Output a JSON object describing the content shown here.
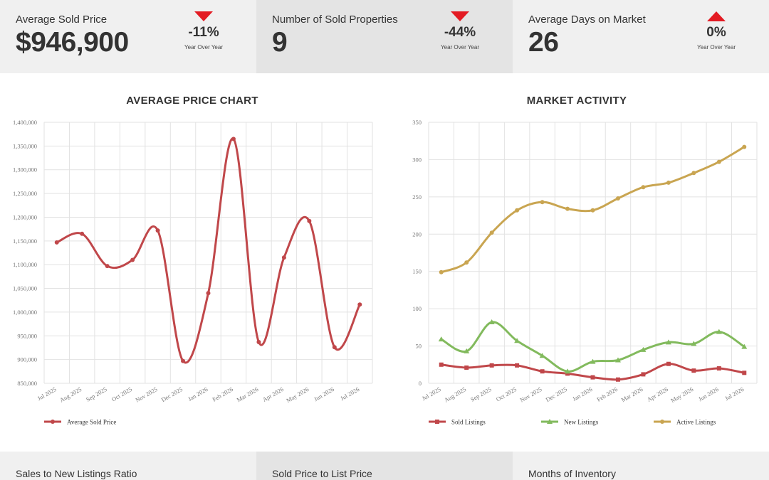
{
  "kpis": [
    {
      "label": "Average Sold Price",
      "value": "$946,900",
      "change": "-11%",
      "direction": "down",
      "sub": "Year Over Year"
    },
    {
      "label": "Number of Sold Properties",
      "value": "9",
      "change": "-44%",
      "direction": "down",
      "sub": "Year Over Year"
    },
    {
      "label": "Average Days on Market",
      "value": "26",
      "change": "0%",
      "direction": "up",
      "sub": "Year Over Year"
    }
  ],
  "colors": {
    "red": "#c0474a",
    "green": "#82ba5d",
    "gold": "#c9a551",
    "arrow": "#e31b23"
  },
  "chart_data": [
    {
      "type": "line",
      "title": "AVERAGE PRICE CHART",
      "categories": [
        "Jul 2025",
        "Aug 2025",
        "Sep 2025",
        "Oct 2025",
        "Nov 2025",
        "Dec 2025",
        "Jan 2026",
        "Feb 2026",
        "Mar 2026",
        "Apr 2026",
        "May 2026",
        "Jun 2026",
        "Jul 2026"
      ],
      "ylim": [
        850000,
        1400000
      ],
      "yticks": [
        "850,000",
        "900,000",
        "950,000",
        "1,000,000",
        "1,050,000",
        "1,100,000",
        "1,150,000",
        "1,200,000",
        "1,250,000",
        "1,300,000",
        "1,350,000",
        "1,400,000"
      ],
      "grid": true,
      "legend": "bottom-left",
      "series": [
        {
          "name": "Average Sold Price",
          "color": "#c0474a",
          "marker": "circle",
          "values": [
            1147000,
            1165000,
            1097000,
            1110000,
            1172000,
            897000,
            1040000,
            1365000,
            937000,
            1115000,
            1192000,
            926000,
            1016000
          ]
        }
      ]
    },
    {
      "type": "line",
      "title": "MARKET ACTIVITY",
      "categories": [
        "Jul 2025",
        "Aug 2025",
        "Sep 2025",
        "Oct 2025",
        "Nov 2025",
        "Dec 2025",
        "Jan 2026",
        "Feb 2026",
        "Mar 2026",
        "Apr 2026",
        "May 2026",
        "Jun 2026",
        "Jul 2026"
      ],
      "ylim": [
        0,
        350
      ],
      "yticks": [
        "0",
        "50",
        "100",
        "150",
        "200",
        "250",
        "300",
        "350"
      ],
      "grid": true,
      "legend": "bottom",
      "series": [
        {
          "name": "Sold Listings",
          "color": "#c0474a",
          "marker": "square",
          "values": [
            25,
            21,
            24,
            24,
            16,
            13,
            8,
            5,
            12,
            26,
            17,
            20,
            14
          ]
        },
        {
          "name": "New Listings",
          "color": "#82ba5d",
          "marker": "triangle",
          "values": [
            59,
            43,
            82,
            57,
            37,
            16,
            29,
            31,
            45,
            55,
            53,
            69,
            49
          ]
        },
        {
          "name": "Active Listings",
          "color": "#c9a551",
          "marker": "circle",
          "values": [
            149,
            162,
            202,
            232,
            243,
            234,
            232,
            248,
            263,
            269,
            282,
            297,
            317
          ]
        }
      ]
    }
  ],
  "bottom": [
    {
      "label": "Sales to New Listings Ratio"
    },
    {
      "label": "Sold Price to List Price"
    },
    {
      "label": "Months of Inventory"
    }
  ]
}
